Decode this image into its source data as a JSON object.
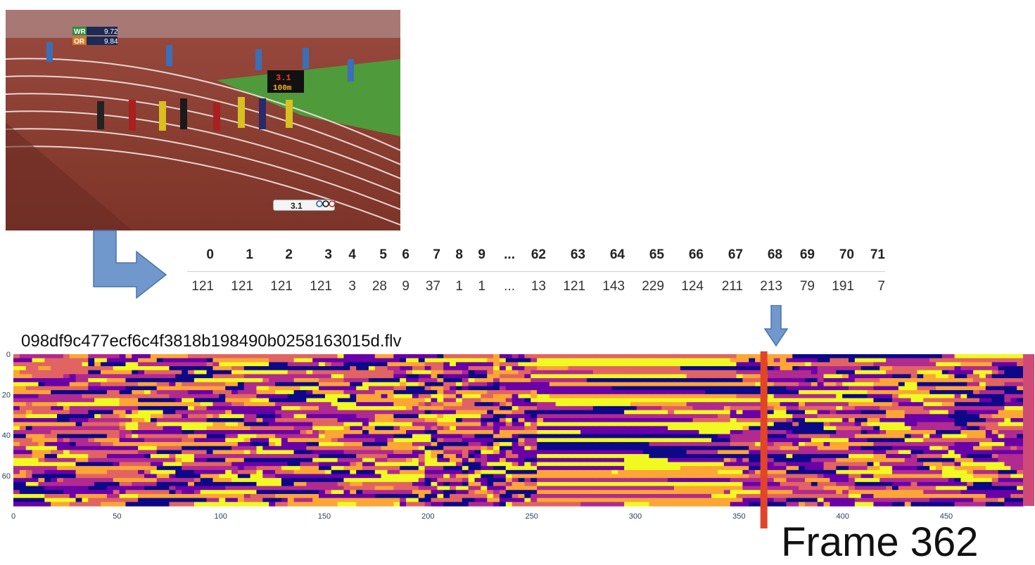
{
  "video_frame": {
    "scoreboard_rows": [
      {
        "label": "WR",
        "value": "9.72"
      },
      {
        "label": "OR",
        "value": "9.84"
      }
    ],
    "track_clock_top": "3.1",
    "track_clock_bottom": "100m",
    "bottom_overlay": "3.1"
  },
  "table": {
    "columns": [
      "0",
      "1",
      "2",
      "3",
      "4",
      "5",
      "6",
      "7",
      "8",
      "9",
      "...",
      "62",
      "63",
      "64",
      "65",
      "66",
      "67",
      "68",
      "69",
      "70",
      "71"
    ],
    "values": [
      "121",
      "121",
      "121",
      "121",
      "3",
      "28",
      "9",
      "37",
      "1",
      "1",
      "...",
      "13",
      "121",
      "143",
      "229",
      "124",
      "211",
      "213",
      "79",
      "191",
      "7"
    ]
  },
  "file_name": "098df9c477ecf6c4f3818b198490b0258163015d.flv",
  "frame_label": "Frame 362",
  "chart_data": {
    "type": "heatmap",
    "title": "098df9c477ecf6c4f3818b198490b0258163015d.flv",
    "xlabel": "",
    "ylabel": "",
    "x_range": [
      0,
      487
    ],
    "y_range": [
      0,
      75
    ],
    "x_ticks": [
      0,
      50,
      100,
      150,
      200,
      250,
      300,
      350,
      400,
      450
    ],
    "y_ticks": [
      0,
      20,
      40,
      60
    ],
    "colormap": [
      "#0d0887",
      "#6a00a8",
      "#b12a90",
      "#e16462",
      "#fca636",
      "#f0f921"
    ],
    "highlight_frame": 362,
    "highlight_color": "#e0452a",
    "end_band_color": "#d04a78"
  },
  "colors": {
    "arrow_fill": "#7098cc",
    "arrow_stroke": "#4a73a8"
  }
}
